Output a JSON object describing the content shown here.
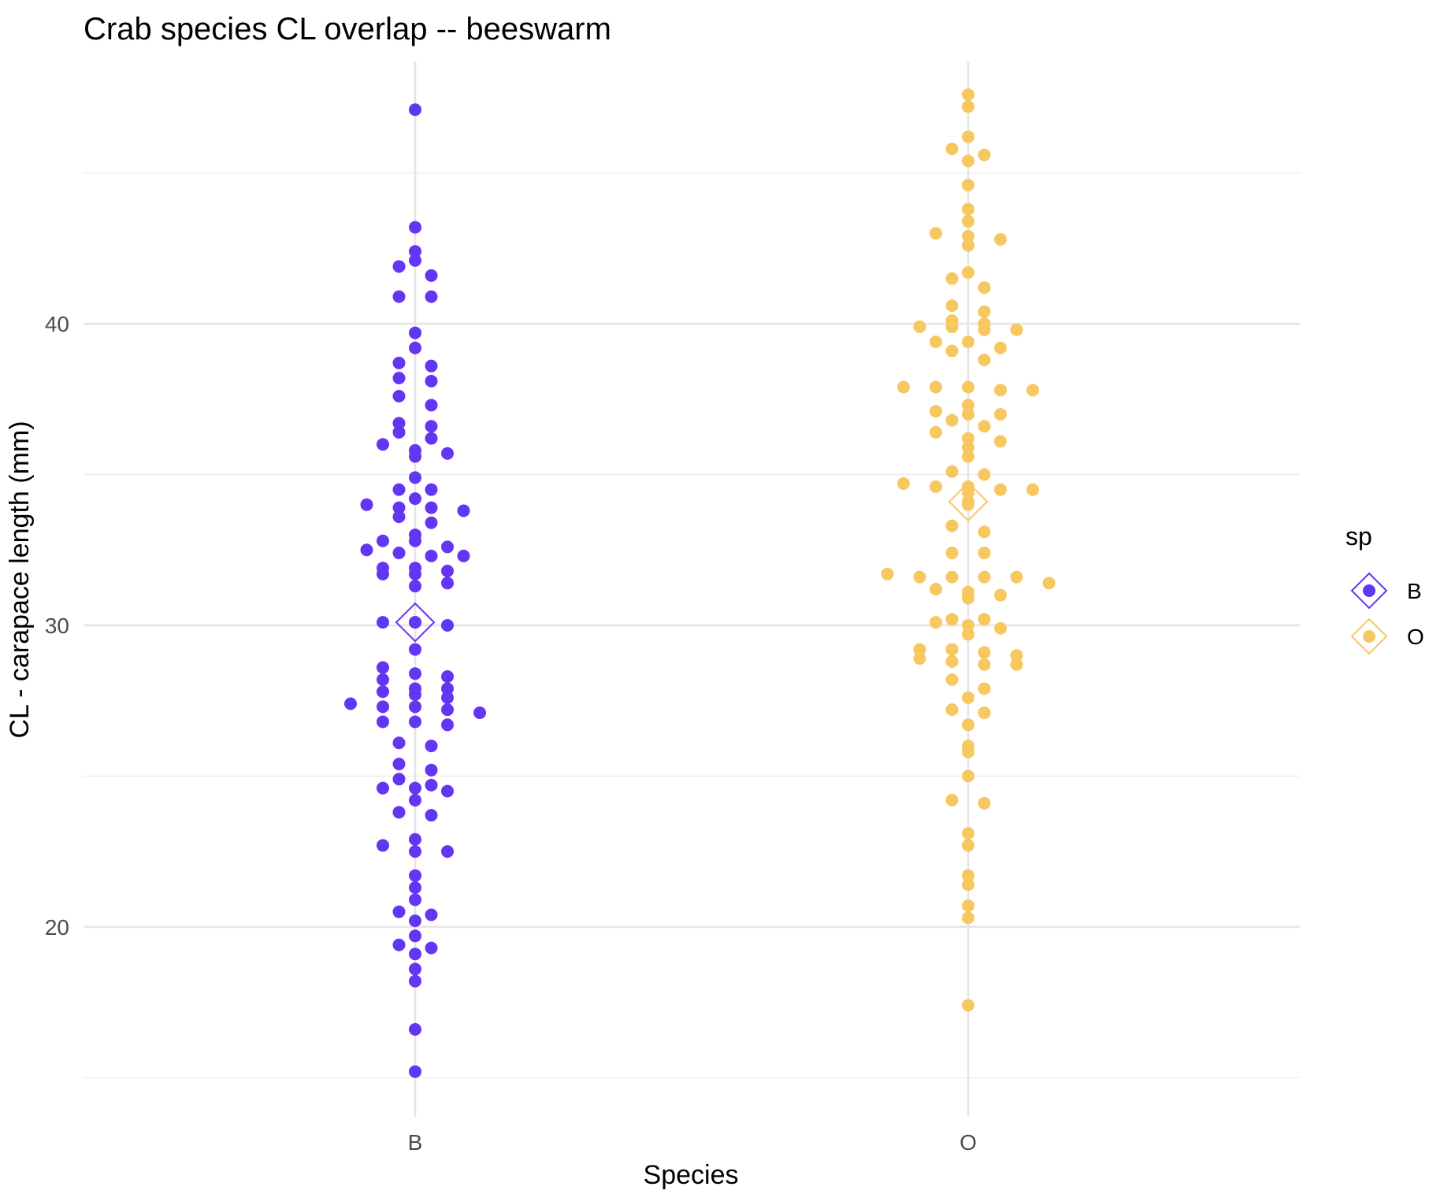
{
  "chart_data": {
    "type": "scatter",
    "subtype": "beeswarm",
    "title": "Crab species CL overlap -- beeswarm",
    "xlabel": "Species",
    "ylabel": "CL - carapace length (mm)",
    "categories": [
      "B",
      "O"
    ],
    "ylim": [
      13.7,
      48.7
    ],
    "yticks": [
      20,
      30,
      40
    ],
    "ytick_labels": [
      "20",
      "30",
      "40"
    ],
    "grid": true,
    "legend": {
      "title": "sp",
      "position": "right",
      "entries": [
        {
          "label": "B",
          "color": "#6236f2"
        },
        {
          "label": "O",
          "color": "#f6c85f"
        }
      ]
    },
    "series": [
      {
        "name": "B",
        "color": "#6236f2",
        "mean": 30.1,
        "values": [
          47.1,
          43.2,
          42.4,
          42.1,
          41.9,
          41.6,
          40.9,
          40.9,
          39.7,
          39.2,
          38.7,
          38.6,
          38.2,
          38.1,
          37.6,
          37.3,
          36.7,
          36.6,
          36.4,
          36.2,
          36.0,
          35.8,
          35.7,
          35.6,
          34.9,
          34.5,
          34.5,
          34.2,
          34.0,
          33.9,
          33.9,
          33.8,
          33.6,
          33.4,
          33.0,
          32.8,
          32.8,
          32.6,
          32.5,
          32.4,
          32.3,
          32.3,
          31.9,
          31.9,
          31.8,
          31.7,
          31.7,
          31.4,
          31.3,
          30.1,
          30.1,
          30.0,
          29.2,
          28.6,
          28.4,
          28.3,
          28.2,
          27.9,
          27.9,
          27.8,
          27.7,
          27.6,
          27.4,
          27.3,
          27.3,
          27.2,
          27.1,
          26.8,
          26.8,
          26.7,
          26.1,
          26.0,
          25.4,
          25.2,
          24.9,
          24.7,
          24.6,
          24.6,
          24.5,
          24.2,
          23.8,
          23.7,
          22.9,
          22.7,
          22.5,
          22.5,
          21.7,
          21.3,
          20.9,
          20.5,
          20.4,
          20.2,
          19.7,
          19.4,
          19.3,
          19.1,
          18.6,
          18.2,
          16.6,
          15.2
        ]
      },
      {
        "name": "O",
        "color": "#f6c85f",
        "mean": 34.1,
        "values": [
          47.6,
          47.2,
          46.2,
          45.8,
          45.6,
          45.4,
          44.6,
          43.8,
          43.4,
          43.0,
          42.9,
          42.8,
          42.6,
          41.7,
          41.5,
          41.2,
          40.6,
          40.4,
          40.1,
          40.0,
          39.9,
          39.9,
          39.8,
          39.8,
          39.4,
          39.4,
          39.2,
          39.1,
          38.8,
          37.9,
          37.9,
          37.9,
          37.8,
          37.8,
          37.3,
          37.1,
          37.0,
          37.0,
          36.8,
          36.6,
          36.4,
          36.2,
          36.1,
          35.9,
          35.6,
          35.1,
          35.0,
          34.7,
          34.6,
          34.6,
          34.5,
          34.5,
          34.4,
          34.0,
          33.3,
          33.1,
          32.4,
          32.4,
          31.7,
          31.6,
          31.6,
          31.6,
          31.6,
          31.4,
          31.2,
          31.1,
          31.0,
          30.9,
          30.2,
          30.2,
          30.1,
          30.0,
          29.9,
          29.7,
          29.2,
          29.2,
          29.1,
          29.0,
          28.9,
          28.8,
          28.7,
          28.7,
          28.2,
          27.9,
          27.6,
          27.2,
          27.1,
          26.7,
          26.0,
          25.8,
          25.0,
          24.2,
          24.1,
          23.1,
          22.7,
          21.7,
          21.4,
          20.7,
          20.3,
          17.4
        ]
      }
    ]
  }
}
